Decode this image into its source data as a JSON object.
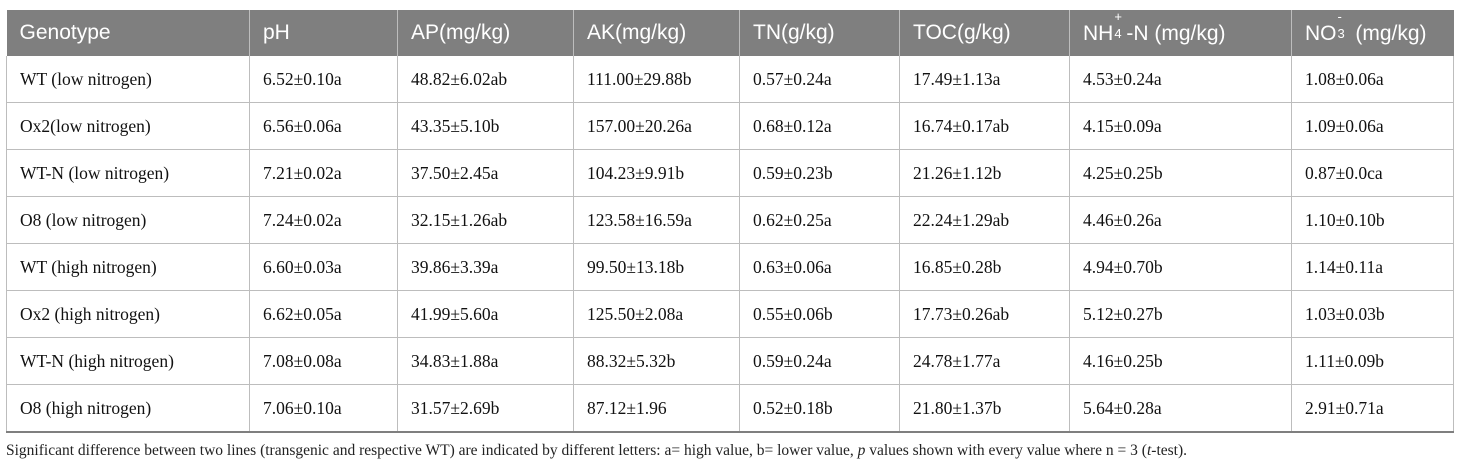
{
  "table": {
    "headers": [
      {
        "text": "Genotype"
      },
      {
        "text": "pH"
      },
      {
        "text": "AP(mg/kg)"
      },
      {
        "text": "AK(mg/kg)"
      },
      {
        "text": "TN(g/kg)"
      },
      {
        "text": "TOC(g/kg)"
      },
      {
        "pre": "NH",
        "sup": "+",
        "sub": "4",
        "post": "-N (mg/kg)"
      },
      {
        "pre": "NO",
        "sub": "3",
        "sup": "-",
        "post": " (mg/kg)"
      }
    ],
    "rows": [
      [
        "WT (low nitrogen)",
        "6.52±0.10a",
        "48.82±6.02ab",
        "111.00±29.88b",
        "0.57±0.24a",
        "17.49±1.13a",
        "4.53±0.24a",
        "1.08±0.06a"
      ],
      [
        "Ox2(low nitrogen)",
        "6.56±0.06a",
        "43.35±5.10b",
        "157.00±20.26a",
        "0.68±0.12a",
        "16.74±0.17ab",
        "4.15±0.09a",
        "1.09±0.06a"
      ],
      [
        "WT-N (low nitrogen)",
        "7.21±0.02a",
        "37.50±2.45a",
        "104.23±9.91b",
        "0.59±0.23b",
        "21.26±1.12b",
        "4.25±0.25b",
        "0.87±0.0ca"
      ],
      [
        "O8 (low nitrogen)",
        "7.24±0.02a",
        "32.15±1.26ab",
        "123.58±16.59a",
        "0.62±0.25a",
        "22.24±1.29ab",
        "4.46±0.26a",
        "1.10±0.10b"
      ],
      [
        "WT (high nitrogen)",
        "6.60±0.03a",
        "39.86±3.39a",
        "99.50±13.18b",
        "0.63±0.06a",
        "16.85±0.28b",
        "4.94±0.70b",
        "1.14±0.11a"
      ],
      [
        "Ox2 (high nitrogen)",
        "6.62±0.05a",
        "41.99±5.60a",
        "125.50±2.08a",
        "0.55±0.06b",
        "17.73±0.26ab",
        "5.12±0.27b",
        "1.03±0.03b"
      ],
      [
        "WT-N (high nitrogen)",
        "7.08±0.08a",
        "34.83±1.88a",
        "88.32±5.32b",
        "0.59±0.24a",
        "24.78±1.77a",
        "4.16±0.25b",
        "1.11±0.09b"
      ],
      [
        "O8 (high nitrogen)",
        "7.06±0.10a",
        "31.57±2.69b",
        "87.12±1.96",
        "0.52±0.18b",
        "21.80±1.37b",
        "5.64±0.28a",
        "2.91±0.71a"
      ]
    ]
  },
  "footnote": {
    "part1": "Significant difference between two lines (transgenic and respective WT) are indicated by different letters: a= high value, b= lower value, ",
    "p": "p",
    "part2": " values shown with every value where n = 3 (",
    "t": "t",
    "part3": "-test)."
  },
  "colors": {
    "header_bg": "#7f7f7f",
    "header_text": "#ffffff",
    "grid": "#bdbdbd"
  }
}
